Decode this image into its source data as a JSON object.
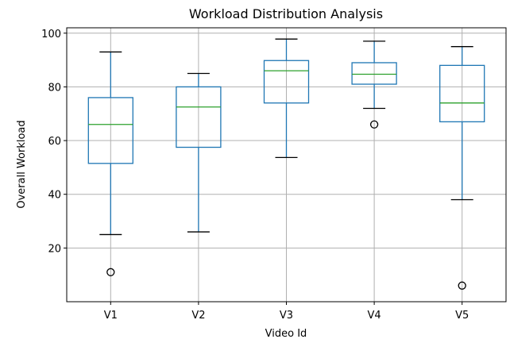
{
  "chart_data": {
    "type": "boxplot",
    "title": "Workload Distribution Analysis",
    "xlabel": "Video Id",
    "ylabel": "Overall Workload",
    "ylim": [
      0,
      102
    ],
    "yticks": [
      20,
      40,
      60,
      80,
      100
    ],
    "grid": true,
    "categories": [
      "V1",
      "V2",
      "V3",
      "V4",
      "V5"
    ],
    "boxes": [
      {
        "label": "V1",
        "whislo": 25,
        "q1": 51.5,
        "med": 66,
        "q3": 76,
        "whishi": 93,
        "fliers": [
          11
        ]
      },
      {
        "label": "V2",
        "whislo": 26,
        "q1": 57.5,
        "med": 72.5,
        "q3": 80,
        "whishi": 85,
        "fliers": []
      },
      {
        "label": "V3",
        "whislo": 53.7,
        "q1": 74,
        "med": 86,
        "q3": 89.8,
        "whishi": 97.8,
        "fliers": []
      },
      {
        "label": "V4",
        "whislo": 72,
        "q1": 81,
        "med": 84.7,
        "q3": 89,
        "whishi": 97,
        "fliers": [
          66
        ]
      },
      {
        "label": "V5",
        "whislo": 38,
        "q1": 67,
        "med": 74,
        "q3": 88,
        "whishi": 95,
        "fliers": [
          6
        ]
      }
    ],
    "colors": {
      "box": "#1f77b4",
      "median": "#2ca02c",
      "whisker": "#1f77b4",
      "cap": "#000000",
      "flier": "#000000",
      "grid": "#b0b0b0",
      "axis": "#000000"
    }
  }
}
